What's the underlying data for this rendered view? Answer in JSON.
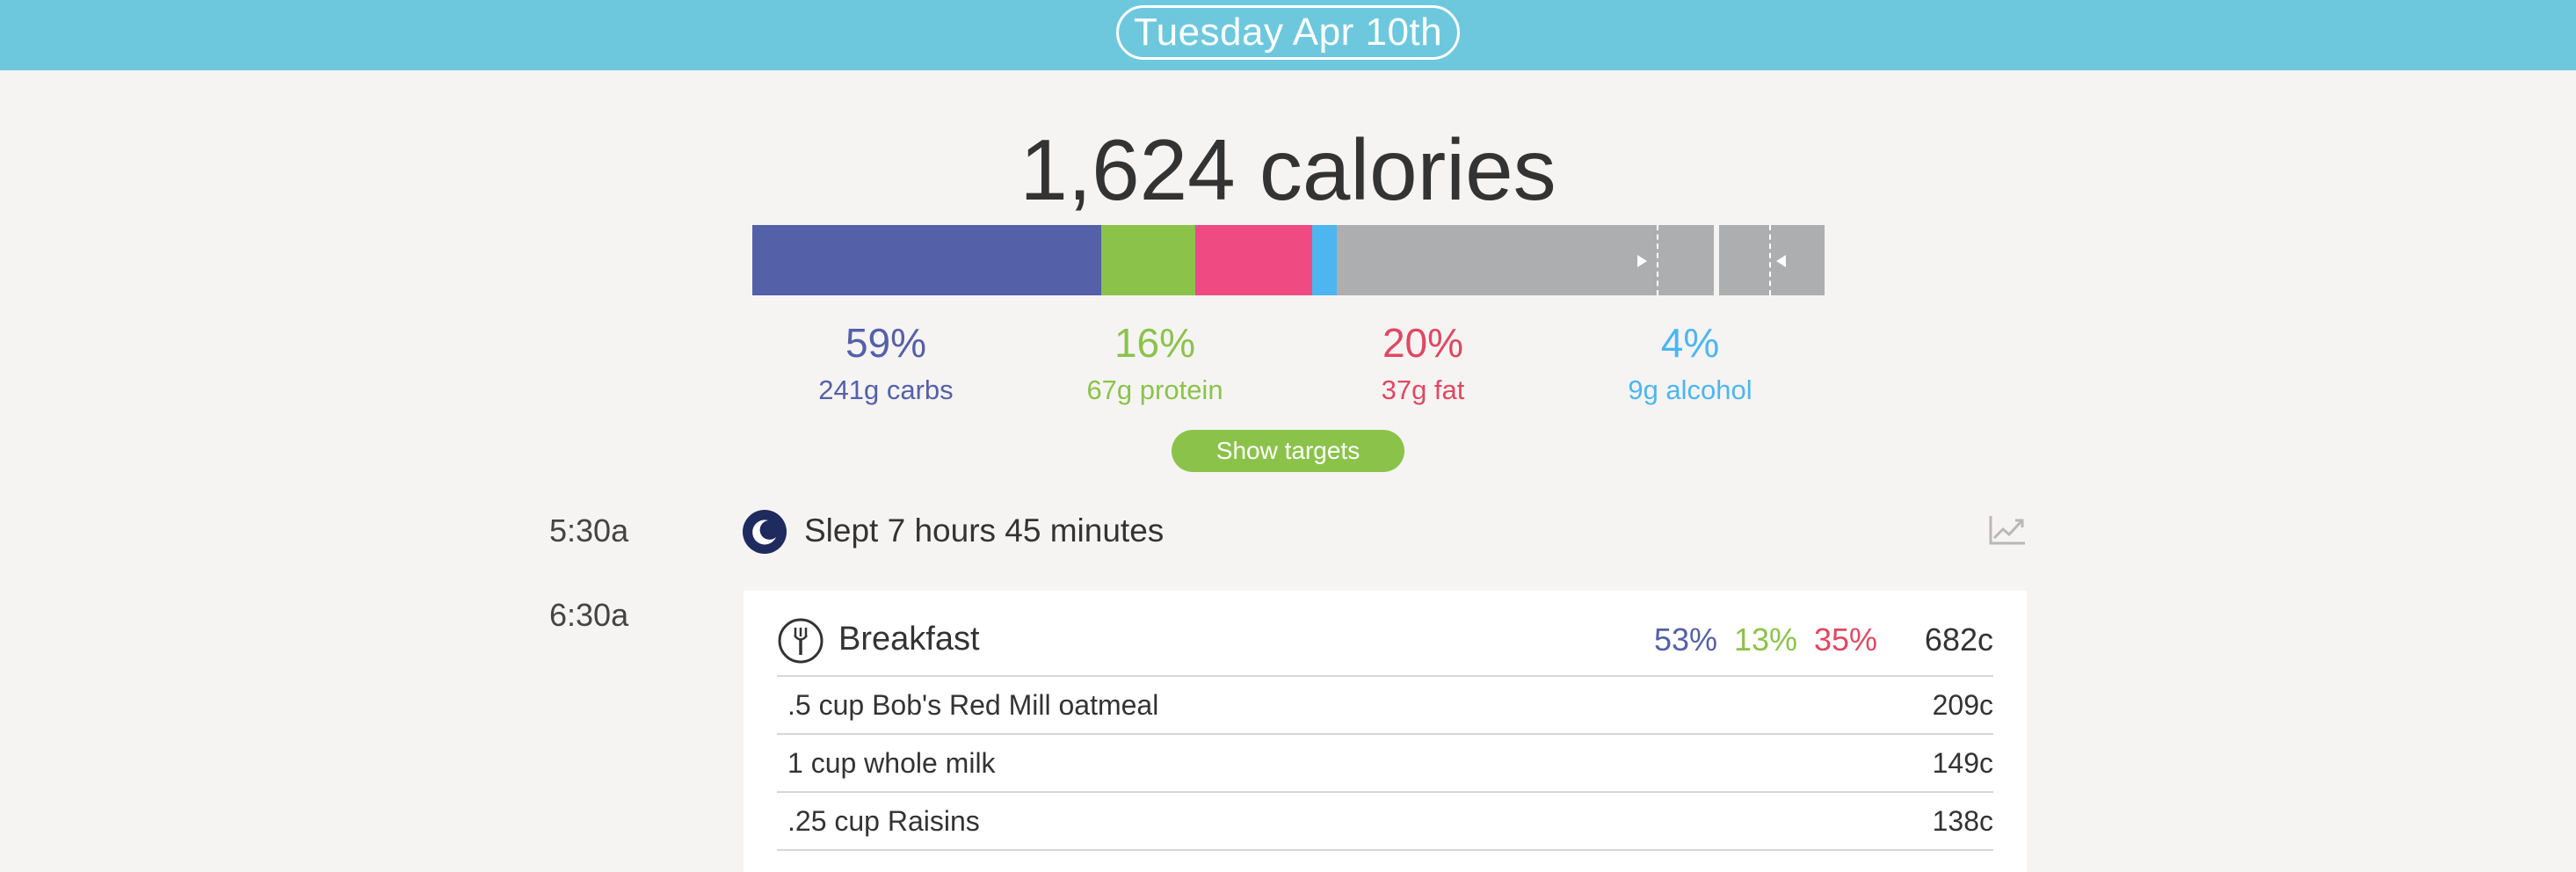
{
  "header": {
    "date_label": "Tuesday Apr 10th"
  },
  "summary": {
    "calories_label": "1,624 calories",
    "show_targets_label": "Show targets",
    "macro_bar": {
      "carbs_fraction": 0.325,
      "protein_fraction": 0.088,
      "fat_fraction": 0.109,
      "alcohol_fraction": 0.023
    },
    "macros": [
      {
        "key": "carbs",
        "percent": "59%",
        "grams": "241g carbs",
        "color": "#5460a8"
      },
      {
        "key": "protein",
        "percent": "16%",
        "grams": "67g protein",
        "color": "#8bc34a"
      },
      {
        "key": "fat",
        "percent": "20%",
        "grams": "37g fat",
        "color": "#e04861"
      },
      {
        "key": "alcohol",
        "percent": "4%",
        "grams": "9g alcohol",
        "color": "#4db6ef"
      }
    ]
  },
  "timeline": {
    "sleep": {
      "time": "5:30a",
      "text": "Slept 7 hours 45 minutes",
      "icon": "moon-icon",
      "trend_icon": "trend-chart-icon"
    },
    "meal": {
      "time": "6:30a",
      "name": "Breakfast",
      "icon": "fork-icon",
      "carbs_pct": "53%",
      "protein_pct": "13%",
      "fat_pct": "35%",
      "calories": "682c",
      "items": [
        {
          "name": ".5 cup Bob's Red Mill oatmeal",
          "calories": "209c"
        },
        {
          "name": "1 cup whole milk",
          "calories": "149c"
        },
        {
          "name": ".25 cup Raisins",
          "calories": "138c"
        }
      ]
    }
  },
  "colors": {
    "header_bg": "#6ec8dd",
    "carbs": "#5460a8",
    "protein": "#8bc34a",
    "fat": "#e04861",
    "fat_segment": "#ef4a82",
    "alcohol": "#4db6ef",
    "remaining": "#adaeaf"
  }
}
